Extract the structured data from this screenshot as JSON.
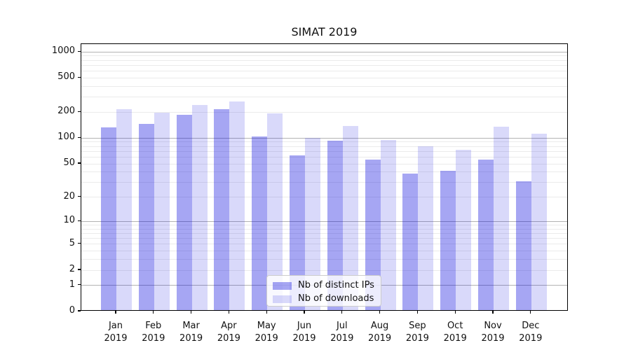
{
  "title": "SIMAT 2019",
  "colors": {
    "bar_distinct_ips": "rgba(0,0,220,0.35)",
    "bar_downloads": "rgba(0,0,220,0.15)",
    "grid_major": "#b3b3b3",
    "grid_minor": "#ebebeb",
    "axis_line": "#000000",
    "legend_border": "#cccccc",
    "text": "#111111"
  },
  "chart_data": {
    "type": "bar",
    "title": "SIMAT 2019",
    "categories": [
      "Jan 2019",
      "Feb 2019",
      "Mar 2019",
      "Apr 2019",
      "May 2019",
      "Jun 2019",
      "Jul 2019",
      "Aug 2019",
      "Sep 2019",
      "Oct 2019",
      "Nov 2019",
      "Dec 2019"
    ],
    "series": [
      {
        "name": "Nb of distinct IPs",
        "values": [
          128,
          142,
          180,
          208,
          100,
          61,
          90,
          54,
          37,
          40,
          54,
          30
        ]
      },
      {
        "name": "Nb of downloads",
        "values": [
          210,
          192,
          234,
          257,
          188,
          97,
          134,
          92,
          77,
          70,
          130,
          109
        ]
      }
    ],
    "yscale": "log1p",
    "yticks": [
      1000,
      500,
      200,
      100,
      50,
      20,
      10,
      5,
      2,
      1,
      0
    ],
    "ylim": [
      0,
      1234
    ],
    "grid": true,
    "legend_position": "lower center"
  }
}
